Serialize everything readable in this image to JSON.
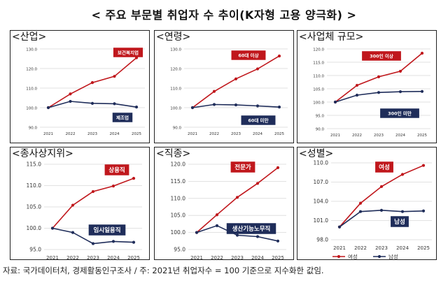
{
  "title": "< 주요 부문별 취업자 수 추이(K자형 고용 양극화) >",
  "source_note": "자료: 국가데이터처, 경제활동인구조사 / 주: 2021년 취업자수 = 100 기준으로 지수화한 값임.",
  "colors": {
    "red": "#C0171C",
    "navy": "#1F2D5A",
    "grid": "#D9D9D9",
    "axis_text": "#333333"
  },
  "chart_data": [
    {
      "type": "line",
      "title": "<산업>",
      "x": [
        "2021",
        "2022",
        "2023",
        "2024",
        "2025"
      ],
      "ylim": [
        90,
        130
      ],
      "yticks": [
        "90.0",
        "100.0",
        "110.0",
        "120.0",
        "130.0"
      ],
      "series": [
        {
          "name": "보건복지업",
          "color": "red",
          "values": [
            100.0,
            107.0,
            112.8,
            116.0,
            125.5
          ],
          "label": "보건복지업"
        },
        {
          "name": "제조업",
          "color": "navy",
          "values": [
            100.0,
            103.2,
            102.2,
            102.0,
            100.3
          ],
          "label": "제조업"
        }
      ]
    },
    {
      "type": "line",
      "title": "<연령>",
      "x": [
        "2021",
        "2022",
        "2023",
        "2024",
        "2025"
      ],
      "ylim": [
        90,
        130
      ],
      "yticks": [
        "90.0",
        "100.0",
        "110.0",
        "120.0",
        "130.0"
      ],
      "series": [
        {
          "name": "60대 이상",
          "color": "red",
          "values": [
            100.0,
            108.3,
            114.7,
            119.8,
            126.4
          ],
          "label": "60대 이상"
        },
        {
          "name": "60대 미만",
          "color": "navy",
          "values": [
            100.0,
            101.6,
            101.4,
            100.9,
            100.3
          ],
          "label": "60대 미만"
        }
      ]
    },
    {
      "type": "line",
      "title": "<사업체 규모>",
      "x": [
        "2021",
        "2022",
        "2023",
        "2024",
        "2025"
      ],
      "ylim": [
        90,
        120
      ],
      "yticks": [
        "90.0",
        "95.0",
        "100.0",
        "105.0",
        "110.0",
        "115.0",
        "120.0"
      ],
      "series": [
        {
          "name": "300인 이상",
          "color": "red",
          "values": [
            100.0,
            106.3,
            109.5,
            111.6,
            118.4
          ],
          "label": "300인 이상"
        },
        {
          "name": "300인 미만",
          "color": "navy",
          "values": [
            100.0,
            102.6,
            103.6,
            103.9,
            104.0
          ],
          "label": "300인 미만"
        }
      ]
    },
    {
      "type": "line",
      "title": "<종사상지위>",
      "x": [
        "2021",
        "2022",
        "2023",
        "2024",
        "2025"
      ],
      "ylim": [
        95,
        115
      ],
      "yticks": [
        "95.0",
        "100.0",
        "105.0",
        "110.0",
        "115.0"
      ],
      "series": [
        {
          "name": "상용직",
          "color": "red",
          "values": [
            100.0,
            105.4,
            108.6,
            109.9,
            111.7
          ],
          "label": "상용직"
        },
        {
          "name": "임시일용직",
          "color": "navy",
          "values": [
            100.0,
            99.0,
            96.4,
            96.9,
            96.7
          ],
          "label": "임시일용직"
        }
      ]
    },
    {
      "type": "line",
      "title": "<직종>",
      "x": [
        "2021",
        "2022",
        "2023",
        "2024",
        "2025"
      ],
      "ylim": [
        95,
        120
      ],
      "yticks": [
        "95.0",
        "100.0",
        "105.0",
        "110.0",
        "115.0",
        "120.0"
      ],
      "series": [
        {
          "name": "전문가",
          "color": "red",
          "values": [
            100.0,
            105.2,
            110.3,
            114.4,
            119.0
          ],
          "label": "전문가"
        },
        {
          "name": "생산기능노무직",
          "color": "navy",
          "values": [
            100.0,
            102.0,
            99.2,
            98.8,
            97.5
          ],
          "label": "생산기능노무직"
        }
      ]
    },
    {
      "type": "line",
      "title": "<성별>",
      "x": [
        "2021",
        "2022",
        "2023",
        "2024",
        "2025"
      ],
      "ylim": [
        98,
        110
      ],
      "yticks": [
        "98.0",
        "101.0",
        "104.0",
        "107.0",
        "110.0"
      ],
      "legend": [
        "여성",
        "남성"
      ],
      "series": [
        {
          "name": "여성",
          "color": "red",
          "values": [
            100.0,
            103.7,
            106.3,
            108.2,
            109.6
          ],
          "label": "여성"
        },
        {
          "name": "남성",
          "color": "navy",
          "values": [
            100.0,
            102.4,
            102.6,
            102.4,
            102.5
          ],
          "label": "남성"
        }
      ]
    }
  ]
}
